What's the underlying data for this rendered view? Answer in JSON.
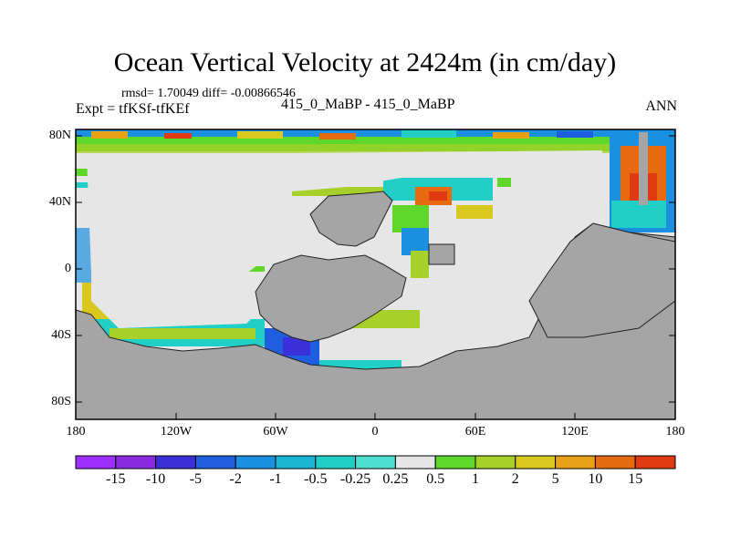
{
  "title": "Ocean Vertical Velocity at 2424m (in cm/day)",
  "stats_line": "rmsd= 1.70049 diff= -0.00866546",
  "expt_line": "Expt = tfKSf-tfKEf",
  "center_label": "415_0_MaBP - 415_0_MaBP",
  "season_label": "ANN",
  "lat_labels": [
    "80N",
    "40N",
    "0",
    "40S",
    "80S"
  ],
  "lon_labels": [
    "180",
    "120W",
    "60W",
    "0",
    "60E",
    "120E",
    "180"
  ],
  "colorbar": {
    "labels": [
      "-15",
      "-10",
      "-5",
      "-2",
      "-1",
      "-0.5",
      "-0.25",
      "0.25",
      "0.5",
      "1",
      "2",
      "5",
      "10",
      "15"
    ],
    "colors": [
      "#8a2be2",
      "#3a2fd8",
      "#1f5fdf",
      "#1c90e0",
      "#19b6d6",
      "#21cfc6",
      "#4fe0d0",
      "#e6e6e6",
      "#5fd62a",
      "#a8d02a",
      "#d9c81e",
      "#e8a016",
      "#e86a10",
      "#e03a12"
    ]
  },
  "colors": {
    "land": "#a5a5a5",
    "ocean_neutral": "#e6e6e6"
  }
}
